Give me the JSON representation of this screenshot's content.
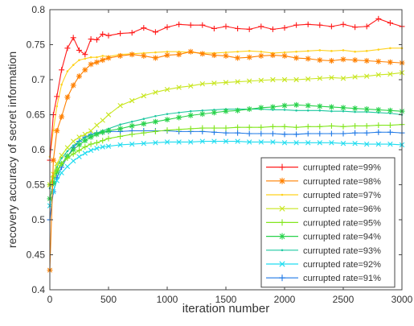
{
  "chart_data": {
    "type": "line",
    "xlabel": "iteration number",
    "ylabel": "recovery accuracy of secret information",
    "xlim": [
      0,
      3000
    ],
    "ylim": [
      0.4,
      0.8
    ],
    "xticks": [
      0,
      500,
      1000,
      1500,
      2000,
      2500,
      3000
    ],
    "yticks": [
      0.4,
      0.45,
      0.5,
      0.55,
      0.6,
      0.65,
      0.7,
      0.75,
      0.8
    ],
    "xtick_labels": [
      "0",
      "500",
      "1000",
      "1500",
      "2000",
      "2500",
      "3000"
    ],
    "ytick_labels": [
      "0.4",
      "0.45",
      "0.5",
      "0.55",
      "0.6",
      "0.65",
      "0.7",
      "0.75",
      "0.8"
    ],
    "grid": false,
    "legend_position": "bottom-right",
    "x": [
      0,
      30,
      60,
      100,
      150,
      200,
      250,
      300,
      350,
      400,
      450,
      500,
      600,
      700,
      800,
      900,
      1000,
      1100,
      1200,
      1300,
      1400,
      1500,
      1600,
      1700,
      1800,
      1900,
      2000,
      2100,
      2200,
      2300,
      2400,
      2500,
      2600,
      2700,
      2800,
      2900,
      3000
    ],
    "series": [
      {
        "name": "currupted rate=99%",
        "color": "#ff1a1a",
        "marker": "plus",
        "values": [
          0.585,
          0.65,
          0.676,
          0.714,
          0.745,
          0.76,
          0.742,
          0.736,
          0.758,
          0.757,
          0.765,
          0.763,
          0.766,
          0.767,
          0.774,
          0.768,
          0.775,
          0.779,
          0.778,
          0.778,
          0.773,
          0.776,
          0.773,
          0.772,
          0.776,
          0.772,
          0.774,
          0.778,
          0.779,
          0.778,
          0.776,
          0.779,
          0.775,
          0.776,
          0.787,
          0.781,
          0.776
        ]
      },
      {
        "name": "currupted rate=98%",
        "color": "#ff8000",
        "marker": "asterisk",
        "values": [
          0.428,
          0.585,
          0.627,
          0.647,
          0.675,
          0.692,
          0.705,
          0.714,
          0.722,
          0.725,
          0.728,
          0.731,
          0.734,
          0.736,
          0.734,
          0.731,
          0.735,
          0.736,
          0.74,
          0.737,
          0.735,
          0.734,
          0.731,
          0.732,
          0.734,
          0.735,
          0.734,
          0.731,
          0.73,
          0.728,
          0.727,
          0.729,
          0.728,
          0.727,
          0.726,
          0.725,
          0.724
        ]
      },
      {
        "name": "currupted rate=97%",
        "color": "#ffd21e",
        "marker": "dot",
        "values": [
          0.59,
          0.628,
          0.662,
          0.693,
          0.712,
          0.721,
          0.728,
          0.73,
          0.732,
          0.732,
          0.734,
          0.733,
          0.736,
          0.737,
          0.738,
          0.739,
          0.74,
          0.74,
          0.739,
          0.738,
          0.738,
          0.739,
          0.74,
          0.741,
          0.74,
          0.738,
          0.739,
          0.74,
          0.741,
          0.742,
          0.741,
          0.742,
          0.74,
          0.741,
          0.743,
          0.745,
          0.745
        ]
      },
      {
        "name": "currupted rate=96%",
        "color": "#c8e61e",
        "marker": "x",
        "values": [
          0.55,
          0.565,
          0.58,
          0.592,
          0.603,
          0.612,
          0.618,
          0.622,
          0.627,
          0.635,
          0.642,
          0.65,
          0.663,
          0.67,
          0.677,
          0.682,
          0.686,
          0.689,
          0.691,
          0.694,
          0.695,
          0.696,
          0.697,
          0.698,
          0.699,
          0.7,
          0.7,
          0.7,
          0.701,
          0.702,
          0.703,
          0.702,
          0.704,
          0.705,
          0.707,
          0.708,
          0.71
        ]
      },
      {
        "name": "currupted rate=95%",
        "color": "#82e61e",
        "marker": "plus",
        "values": [
          0.55,
          0.561,
          0.571,
          0.58,
          0.588,
          0.594,
          0.599,
          0.604,
          0.608,
          0.61,
          0.613,
          0.616,
          0.619,
          0.622,
          0.624,
          0.626,
          0.628,
          0.629,
          0.63,
          0.631,
          0.631,
          0.631,
          0.632,
          0.632,
          0.632,
          0.633,
          0.633,
          0.632,
          0.633,
          0.633,
          0.634,
          0.633,
          0.634,
          0.634,
          0.635,
          0.635,
          0.636
        ]
      },
      {
        "name": "currupted rate=94%",
        "color": "#28d24b",
        "marker": "asterisk",
        "values": [
          0.53,
          0.552,
          0.568,
          0.58,
          0.591,
          0.6,
          0.607,
          0.613,
          0.618,
          0.622,
          0.625,
          0.627,
          0.63,
          0.634,
          0.637,
          0.64,
          0.643,
          0.646,
          0.649,
          0.651,
          0.653,
          0.655,
          0.656,
          0.658,
          0.66,
          0.661,
          0.663,
          0.664,
          0.663,
          0.662,
          0.661,
          0.66,
          0.659,
          0.658,
          0.657,
          0.656,
          0.655
        ]
      },
      {
        "name": "currupted rate=93%",
        "color": "#1ec8a0",
        "marker": "dot",
        "values": [
          0.545,
          0.56,
          0.575,
          0.588,
          0.598,
          0.606,
          0.612,
          0.617,
          0.621,
          0.624,
          0.627,
          0.63,
          0.636,
          0.64,
          0.644,
          0.648,
          0.651,
          0.653,
          0.655,
          0.656,
          0.657,
          0.658,
          0.658,
          0.658,
          0.658,
          0.657,
          0.657,
          0.656,
          0.656,
          0.656,
          0.655,
          0.655,
          0.654,
          0.654,
          0.653,
          0.652,
          0.65
        ]
      },
      {
        "name": "currupted rate=92%",
        "color": "#1edcf0",
        "marker": "x",
        "values": [
          0.52,
          0.54,
          0.556,
          0.567,
          0.576,
          0.584,
          0.59,
          0.595,
          0.599,
          0.602,
          0.604,
          0.605,
          0.607,
          0.608,
          0.609,
          0.61,
          0.611,
          0.611,
          0.611,
          0.612,
          0.612,
          0.612,
          0.612,
          0.611,
          0.611,
          0.611,
          0.61,
          0.61,
          0.61,
          0.61,
          0.61,
          0.609,
          0.609,
          0.608,
          0.608,
          0.608,
          0.607
        ]
      },
      {
        "name": "currupted rate=91%",
        "color": "#1e78e6",
        "marker": "plus",
        "values": [
          0.5,
          0.54,
          0.56,
          0.575,
          0.59,
          0.603,
          0.612,
          0.618,
          0.622,
          0.624,
          0.625,
          0.626,
          0.626,
          0.627,
          0.627,
          0.627,
          0.627,
          0.626,
          0.626,
          0.626,
          0.625,
          0.624,
          0.624,
          0.623,
          0.623,
          0.623,
          0.622,
          0.622,
          0.623,
          0.623,
          0.623,
          0.623,
          0.624,
          0.624,
          0.625,
          0.625,
          0.624
        ]
      }
    ]
  }
}
